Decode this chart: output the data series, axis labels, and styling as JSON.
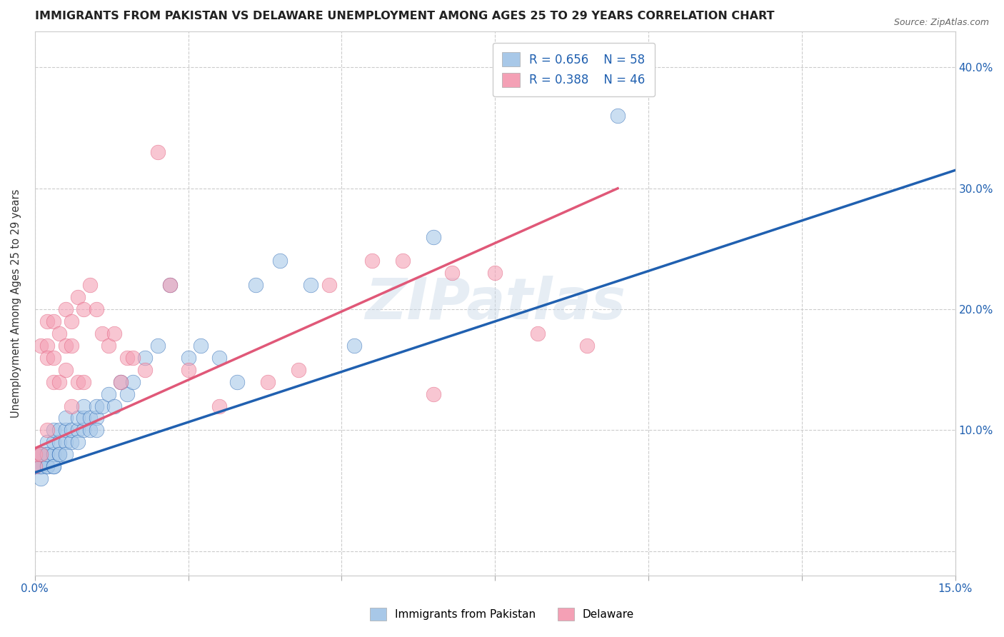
{
  "title": "IMMIGRANTS FROM PAKISTAN VS DELAWARE UNEMPLOYMENT AMONG AGES 25 TO 29 YEARS CORRELATION CHART",
  "source": "Source: ZipAtlas.com",
  "ylabel": "Unemployment Among Ages 25 to 29 years",
  "xlim": [
    0.0,
    0.15
  ],
  "ylim": [
    -0.02,
    0.43
  ],
  "xticks": [
    0.0,
    0.025,
    0.05,
    0.075,
    0.1,
    0.125,
    0.15
  ],
  "xtick_labels": [
    "0.0%",
    "",
    "",
    "",
    "",
    "",
    "15.0%"
  ],
  "yticks": [
    0.0,
    0.1,
    0.2,
    0.3,
    0.4
  ],
  "ytick_labels": [
    "",
    "10.0%",
    "20.0%",
    "30.0%",
    "40.0%"
  ],
  "legend1_r": "0.656",
  "legend1_n": "58",
  "legend2_r": "0.388",
  "legend2_n": "46",
  "blue_color": "#a8c8e8",
  "pink_color": "#f4a0b5",
  "blue_line_color": "#2060b0",
  "pink_line_color": "#e05878",
  "watermark": "ZIPatlas",
  "title_fontsize": 11.5,
  "blue_scatter_x": [
    0.0,
    0.0,
    0.0,
    0.001,
    0.001,
    0.001,
    0.001,
    0.001,
    0.002,
    0.002,
    0.002,
    0.002,
    0.002,
    0.003,
    0.003,
    0.003,
    0.003,
    0.003,
    0.004,
    0.004,
    0.004,
    0.004,
    0.005,
    0.005,
    0.005,
    0.005,
    0.006,
    0.006,
    0.007,
    0.007,
    0.007,
    0.008,
    0.008,
    0.008,
    0.009,
    0.009,
    0.01,
    0.01,
    0.01,
    0.011,
    0.012,
    0.013,
    0.014,
    0.015,
    0.016,
    0.018,
    0.02,
    0.022,
    0.025,
    0.027,
    0.03,
    0.033,
    0.036,
    0.04,
    0.045,
    0.052,
    0.065,
    0.095
  ],
  "blue_scatter_y": [
    0.07,
    0.08,
    0.07,
    0.07,
    0.08,
    0.06,
    0.07,
    0.08,
    0.07,
    0.08,
    0.09,
    0.07,
    0.08,
    0.07,
    0.08,
    0.09,
    0.1,
    0.07,
    0.08,
    0.09,
    0.1,
    0.08,
    0.09,
    0.1,
    0.08,
    0.11,
    0.09,
    0.1,
    0.1,
    0.11,
    0.09,
    0.1,
    0.11,
    0.12,
    0.11,
    0.1,
    0.11,
    0.12,
    0.1,
    0.12,
    0.13,
    0.12,
    0.14,
    0.13,
    0.14,
    0.16,
    0.17,
    0.22,
    0.16,
    0.17,
    0.16,
    0.14,
    0.22,
    0.24,
    0.22,
    0.17,
    0.26,
    0.36
  ],
  "pink_scatter_x": [
    0.0,
    0.0,
    0.001,
    0.001,
    0.002,
    0.002,
    0.002,
    0.002,
    0.003,
    0.003,
    0.003,
    0.004,
    0.004,
    0.005,
    0.005,
    0.005,
    0.006,
    0.006,
    0.006,
    0.007,
    0.007,
    0.008,
    0.008,
    0.009,
    0.01,
    0.011,
    0.012,
    0.013,
    0.014,
    0.015,
    0.016,
    0.018,
    0.02,
    0.022,
    0.025,
    0.03,
    0.038,
    0.043,
    0.048,
    0.055,
    0.06,
    0.065,
    0.068,
    0.075,
    0.082,
    0.09
  ],
  "pink_scatter_y": [
    0.07,
    0.08,
    0.08,
    0.17,
    0.1,
    0.19,
    0.17,
    0.16,
    0.14,
    0.16,
    0.19,
    0.14,
    0.18,
    0.15,
    0.17,
    0.2,
    0.12,
    0.19,
    0.17,
    0.14,
    0.21,
    0.14,
    0.2,
    0.22,
    0.2,
    0.18,
    0.17,
    0.18,
    0.14,
    0.16,
    0.16,
    0.15,
    0.33,
    0.22,
    0.15,
    0.12,
    0.14,
    0.15,
    0.22,
    0.24,
    0.24,
    0.13,
    0.23,
    0.23,
    0.18,
    0.17
  ],
  "blue_line_x": [
    0.0,
    0.15
  ],
  "blue_line_y": [
    0.065,
    0.315
  ],
  "pink_line_x": [
    0.0,
    0.095
  ],
  "pink_line_y": [
    0.085,
    0.3
  ]
}
